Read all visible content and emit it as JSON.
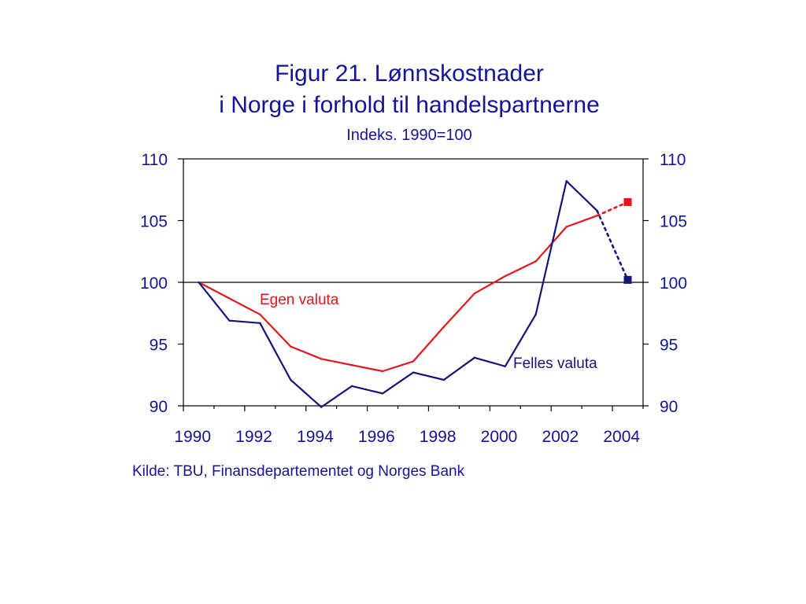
{
  "chart_data": {
    "type": "line",
    "title_line1": "Figur 21. Lønnskostnader",
    "title_line2": "i Norge i forhold til handelspartnerne",
    "subtitle": "Indeks. 1990=100",
    "source": "Kilde: TBU, Finansdepartementet og Norges Bank",
    "ylim": [
      90,
      110
    ],
    "yticks": [
      90,
      95,
      100,
      105,
      110
    ],
    "xlim": [
      1990,
      2005
    ],
    "xticks": [
      "1990",
      "1992",
      "1994",
      "1996",
      "1998",
      "2000",
      "2002",
      "2004"
    ],
    "reference_line": 100,
    "series": [
      {
        "name": "Egen valuta",
        "color": "#e8141c",
        "x": [
          1990,
          1991,
          1992,
          1993,
          1994,
          1995,
          1996,
          1997,
          1998,
          1999,
          2000,
          2001,
          2002,
          2003
        ],
        "values": [
          100.0,
          98.7,
          97.4,
          94.8,
          93.8,
          93.3,
          92.8,
          93.6,
          96.4,
          99.1,
          100.5,
          101.7,
          104.5,
          105.4
        ],
        "projection": {
          "x": 2004,
          "value": 106.5
        }
      },
      {
        "name": "Felles valuta",
        "color": "#14147a",
        "x": [
          1990,
          1991,
          1992,
          1993,
          1994,
          1995,
          1996,
          1997,
          1998,
          1999,
          2000,
          2001,
          2002,
          2003
        ],
        "values": [
          100.0,
          96.9,
          96.7,
          92.1,
          89.9,
          91.6,
          91.0,
          92.7,
          92.1,
          93.9,
          93.2,
          97.4,
          108.2,
          105.8
        ],
        "projection": {
          "x": 2004,
          "value": 100.2
        }
      }
    ]
  }
}
